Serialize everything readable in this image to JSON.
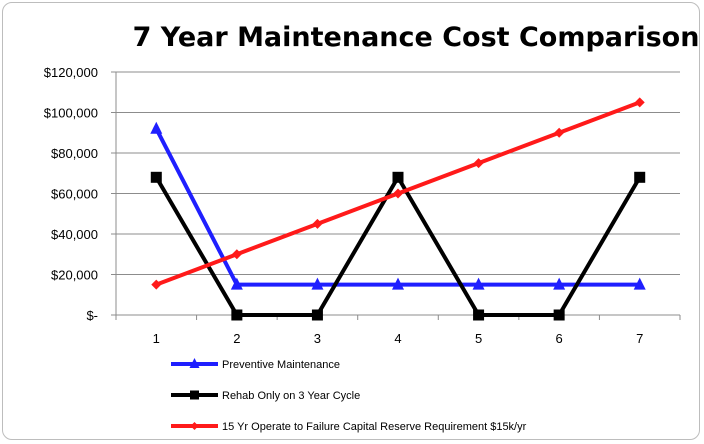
{
  "chart_data": {
    "type": "line",
    "title": "7 Year Maintenance Cost Comparison",
    "xlabel": "",
    "ylabel": "",
    "categories": [
      "1",
      "2",
      "3",
      "4",
      "5",
      "6",
      "7"
    ],
    "ylim": [
      0,
      120000
    ],
    "yticks": [
      0,
      20000,
      40000,
      60000,
      80000,
      100000,
      120000
    ],
    "ytick_labels": [
      "$-",
      "$20,000",
      "$40,000",
      "$60,000",
      "$80,000",
      "$100,000",
      "$120,000"
    ],
    "grid": true,
    "legend_position": "bottom",
    "series": [
      {
        "name": "Preventive Maintenance",
        "color": "#1f1fff",
        "marker": "triangle",
        "values": [
          92000,
          15000,
          15000,
          15000,
          15000,
          15000,
          15000
        ]
      },
      {
        "name": "Rehab Only on 3 Year Cycle",
        "color": "#000000",
        "marker": "square",
        "values": [
          68000,
          0,
          0,
          68000,
          0,
          0,
          68000
        ]
      },
      {
        "name": "15 Yr Operate to Failure Capital Reserve Requirement $15k/yr",
        "color": "#ff1a1a",
        "marker": "diamond",
        "values": [
          15000,
          30000,
          45000,
          60000,
          75000,
          90000,
          105000
        ]
      }
    ]
  }
}
